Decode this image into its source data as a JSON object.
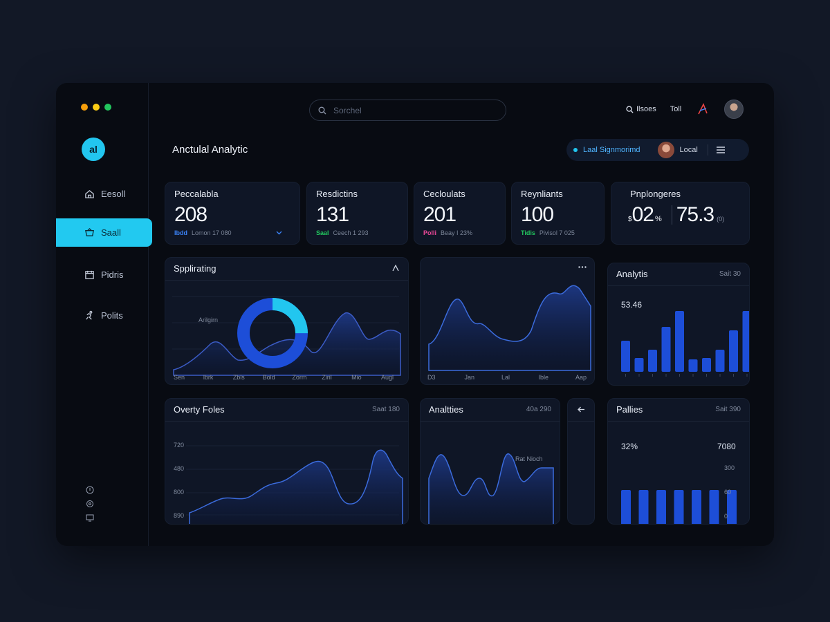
{
  "window": {
    "dot_colors": [
      "#f59e0b",
      "#facc15",
      "#22c55e"
    ]
  },
  "sidebar": {
    "logo": "al",
    "items": [
      {
        "label": "Eesoll",
        "icon": "home-icon"
      },
      {
        "label": "Saall",
        "icon": "basket-icon",
        "active": true
      },
      {
        "label": "Pidris",
        "icon": "calendar-icon"
      },
      {
        "label": "Polits",
        "icon": "run-icon"
      }
    ],
    "bottom_icons": [
      "info-icon",
      "settings-icon",
      "monitor-icon"
    ]
  },
  "header": {
    "search_placeholder": "Sorchel",
    "link1": "Ilsoes",
    "link2": "Toll",
    "title": "Anctulal Analytic",
    "pill_label": "Laal Signmorimd",
    "pill_user": "Local"
  },
  "stats": [
    {
      "label": "Peccalabla",
      "value": "208",
      "tag": "Ibdd",
      "tag_color": "#3b82f6",
      "sub": "Lomon 17 080"
    },
    {
      "label": "Resdictins",
      "value": "131",
      "tag": "Saal",
      "tag_color": "#22c55e",
      "sub": "Ceech 1 293"
    },
    {
      "label": "Cecloulats",
      "value": "201",
      "tag": "Polli",
      "tag_color": "#ec4899",
      "sub": "Beay I 23%"
    },
    {
      "label": "Reynliants",
      "value": "100",
      "tag": "Tidis",
      "tag_color": "#22c55e",
      "sub": "Pivisol 7 025"
    },
    {
      "label": "Pnplongeres",
      "value1": "02",
      "prefix": "$",
      "unit": "%",
      "value2": "75.3",
      "unit2": "(0)"
    }
  ],
  "chart1": {
    "title": "Spplirating",
    "annotation": "Arilgirn",
    "xlabels": [
      "Sen",
      "lbrk",
      "Zbls",
      "Bold",
      "Zorm",
      "Ziril",
      "Mio",
      "Augl"
    ]
  },
  "chart2": {
    "xlabels": [
      "D3",
      "Jan",
      "Lal",
      "Ible",
      "Aap"
    ]
  },
  "chart3": {
    "title": "Analytis",
    "right": "Sait 30",
    "value": "53.46"
  },
  "chart4": {
    "title": "Overty Foles",
    "right": "Saat 180",
    "ylabels": [
      "720",
      "480",
      "800",
      "890"
    ]
  },
  "chart5": {
    "title": "Analtties",
    "right": "40a 290",
    "annotation": "Rat Nioch"
  },
  "chart6": {
    "title": "Pallies",
    "right": "Sait 390",
    "left_value": "32%",
    "right_value": "7080",
    "ylabels": [
      "300",
      "60",
      "0"
    ]
  },
  "chart_data": [
    {
      "type": "bar",
      "title": "Analytis",
      "values": [
        45,
        20,
        32,
        65,
        88,
        18,
        20,
        32,
        60,
        88
      ]
    },
    {
      "type": "bar",
      "title": "Pallies",
      "values": [
        80,
        80,
        80,
        80,
        80,
        80,
        80
      ]
    },
    {
      "type": "pie",
      "values": [
        75,
        25
      ]
    }
  ]
}
